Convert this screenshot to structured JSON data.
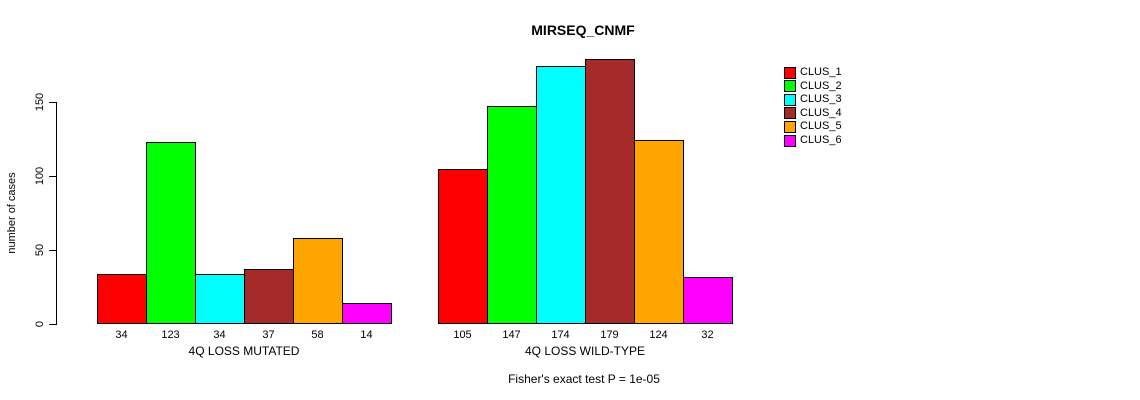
{
  "chart_data": {
    "type": "bar",
    "title": "MIRSEQ_CNMF",
    "ylabel": "number of cases",
    "xlabel": "",
    "yticks": [
      0,
      50,
      100,
      150
    ],
    "ylim": [
      0,
      180
    ],
    "grid": false,
    "legend_position": "right",
    "series": [
      {
        "name": "CLUS_1",
        "color": "#FF0000"
      },
      {
        "name": "CLUS_2",
        "color": "#00FF00"
      },
      {
        "name": "CLUS_3",
        "color": "#00FFFF"
      },
      {
        "name": "CLUS_4",
        "color": "#A52A2A"
      },
      {
        "name": "CLUS_5",
        "color": "#FFA500"
      },
      {
        "name": "CLUS_6",
        "color": "#FF00FF"
      }
    ],
    "groups": [
      {
        "label": "4Q LOSS MUTATED",
        "values": [
          34,
          123,
          34,
          37,
          58,
          14
        ]
      },
      {
        "label": "4Q LOSS WILD-TYPE",
        "values": [
          105,
          147,
          174,
          179,
          124,
          32
        ]
      }
    ],
    "annotation": "Fisher's exact test P = 1e-05",
    "bar_border_color": "#000000",
    "background_color": "#FFFFFF"
  }
}
